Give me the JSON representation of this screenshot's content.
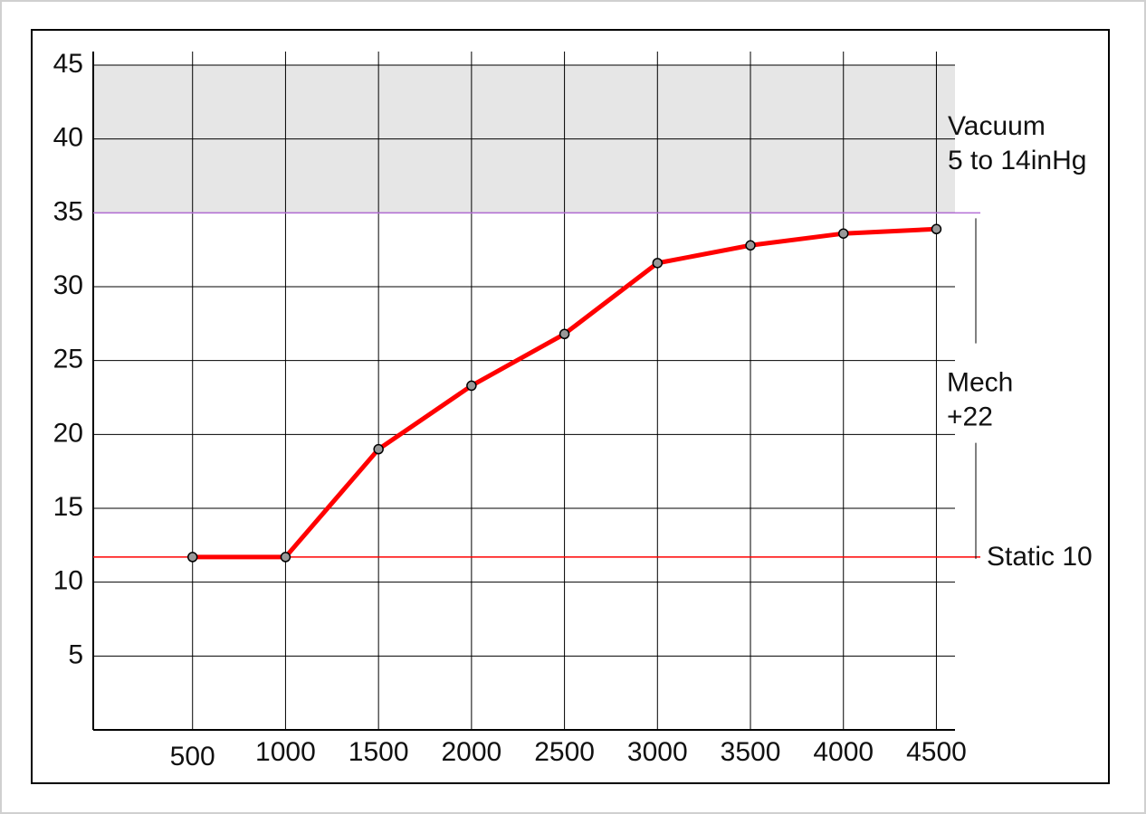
{
  "chart_data": {
    "type": "line",
    "x": [
      500,
      1000,
      1500,
      2000,
      2500,
      3000,
      3500,
      4000,
      4500
    ],
    "series": [
      {
        "color": "#ff0000",
        "values": [
          11.7,
          11.7,
          19,
          23.3,
          26.8,
          31.6,
          32.8,
          33.6,
          33.9
        ]
      }
    ],
    "xlim": [
      0,
      4600
    ],
    "ylim": [
      0,
      45
    ],
    "xticks": [
      500,
      1000,
      1500,
      2000,
      2500,
      3000,
      3500,
      4000,
      4500
    ],
    "yticks": [
      5,
      10,
      15,
      20,
      25,
      30,
      35,
      40,
      45
    ],
    "grid": true,
    "bands": [
      {
        "from": 35,
        "to": 45,
        "color": "#e6e6e6",
        "label": [
          "Vacuum",
          "5 to 14inHg"
        ]
      }
    ],
    "reference_lines": [
      {
        "value": 35,
        "color": "#b46fd6"
      },
      {
        "value": 11.7,
        "color": "#ff0000",
        "label": "Static 10"
      }
    ],
    "brackets": [
      {
        "from": 11.7,
        "to": 35,
        "label": [
          "Mech",
          "+22"
        ]
      }
    ]
  }
}
